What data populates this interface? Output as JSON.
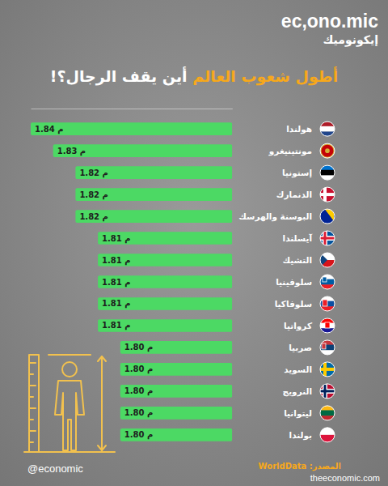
{
  "chart_data": {
    "type": "bar",
    "orientation": "horizontal",
    "title": "أطول شعوب العالم",
    "subtitle": "أين يقف الرجال؟!",
    "categories": [
      "هولندا",
      "مونتينيغرو",
      "إستونيا",
      "الدنمارك",
      "البوسنة والهرسك",
      "آيسلندا",
      "التشيك",
      "سلوفينيا",
      "سلوفاكيا",
      "كرواتيا",
      "صربيا",
      "السويد",
      "النرويج",
      "ليتوانيا",
      "بولندا"
    ],
    "values": [
      1.84,
      1.83,
      1.82,
      1.82,
      1.82,
      1.81,
      1.81,
      1.81,
      1.81,
      1.81,
      1.8,
      1.8,
      1.8,
      1.8,
      1.8
    ],
    "value_labels": [
      "1.84 م",
      "1.83 م",
      "1.82 م",
      "1.82 م",
      "1.82 م",
      "1.81 م",
      "1.81 م",
      "1.81 م",
      "1.81 م",
      "1.81 م",
      "1.80 م",
      "1.80 م",
      "1.80 م",
      "1.80 م",
      "1.80 م"
    ],
    "color": "#4cd964",
    "xlim": [
      1.75,
      1.84
    ],
    "tick_labels": false,
    "grid": false,
    "data_labels": true,
    "source": "المصدر: WorldData"
  },
  "branding": {
    "logo": "ec,ono.mic",
    "logo_arabic": "إيكونوميك",
    "handle": "@economic",
    "website": "theeconomic.com"
  }
}
